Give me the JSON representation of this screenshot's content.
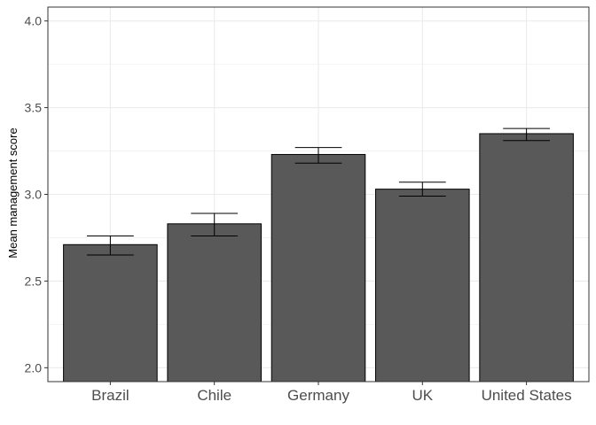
{
  "chart_data": {
    "type": "bar",
    "title": "",
    "xlabel": "",
    "ylabel": "Mean management score",
    "categories": [
      "Brazil",
      "Chile",
      "Germany",
      "UK",
      "United States"
    ],
    "values": [
      2.71,
      2.83,
      3.23,
      3.03,
      3.35
    ],
    "error_bars": [
      {
        "low": 2.65,
        "high": 2.76
      },
      {
        "low": 2.76,
        "high": 2.89
      },
      {
        "low": 3.18,
        "high": 3.27
      },
      {
        "low": 2.99,
        "high": 3.07
      },
      {
        "low": 3.31,
        "high": 3.38
      }
    ],
    "ylim": [
      1.92,
      4.08
    ],
    "yticks": [
      "2.0",
      "2.5",
      "3.0",
      "3.5",
      "4.0"
    ],
    "grid": true,
    "colors": {
      "bar_fill": "#595959",
      "bar_stroke": "#000000",
      "grid": "#ebebeb",
      "panel_border": "#333333"
    }
  }
}
